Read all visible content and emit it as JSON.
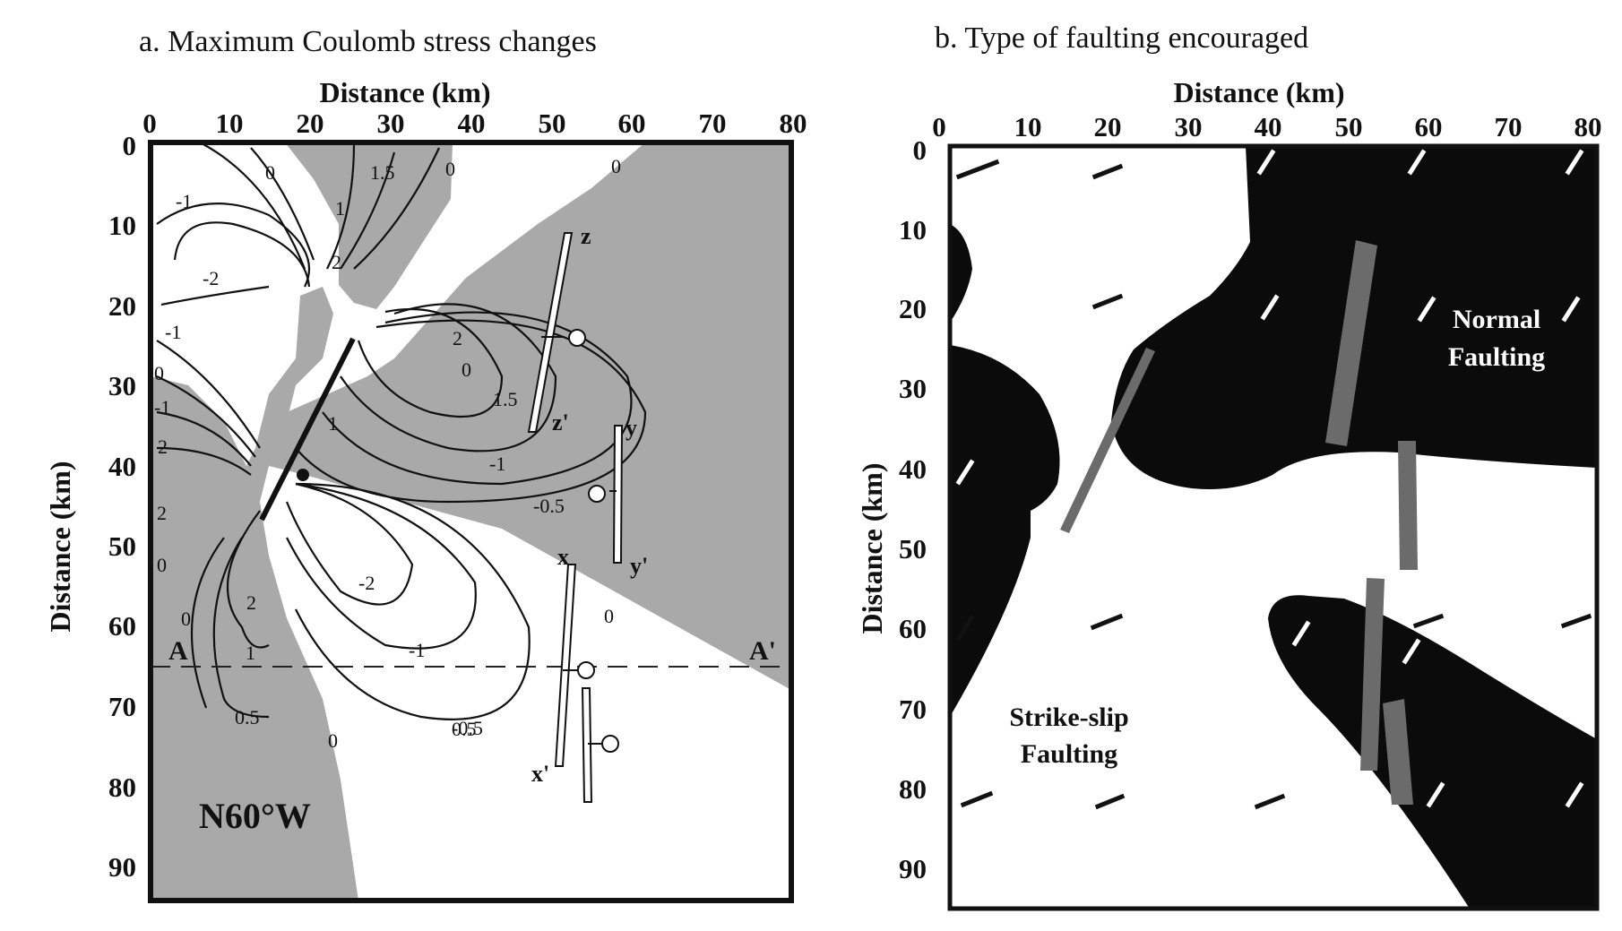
{
  "panel_a": {
    "title": "a. Maximum Coulomb stress changes",
    "x_axis_title": "Distance (km)",
    "y_axis_title": "Distance (km)",
    "x_ticks": [
      "0",
      "10",
      "20",
      "30",
      "40",
      "50",
      "60",
      "70",
      "80"
    ],
    "y_ticks": [
      "0",
      "10",
      "20",
      "30",
      "40",
      "50",
      "60",
      "70",
      "80",
      "90"
    ],
    "orientation_label": "N60°W",
    "profile_start": "A",
    "profile_end": "A'",
    "contour_labels": [
      "0",
      "0",
      "0",
      "1.5",
      "-1",
      "1",
      "2",
      "-2",
      "-1",
      "0",
      "-1",
      "2",
      "0",
      "2",
      "1.5",
      "-1",
      "2",
      "0",
      "-2",
      "2",
      "0",
      "-1",
      "1",
      "0.5",
      "-0.5",
      "0.5",
      "0",
      "-0.5",
      "0",
      "1"
    ],
    "fault_labels": [
      "z",
      "z'",
      "y",
      "y'",
      "x",
      "x'"
    ]
  },
  "panel_b": {
    "title": "b. Type of faulting encouraged",
    "x_axis_title": "Distance (km)",
    "y_axis_title": "Distance (km)",
    "x_ticks": [
      "0",
      "10",
      "20",
      "30",
      "40",
      "50",
      "60",
      "70",
      "80"
    ],
    "y_ticks": [
      "0",
      "10",
      "20",
      "30",
      "40",
      "50",
      "60",
      "70",
      "80",
      "90"
    ],
    "normal_label_line1": "Normal",
    "normal_label_line2": "Faulting",
    "strike_label_line1": "Strike-slip",
    "strike_label_line2": "Faulting"
  },
  "colors": {
    "gray_fill": "#a9a9a9",
    "black_fill": "#0b0b0b",
    "fault_fill": "#6b6b6b",
    "white": "#ffffff"
  }
}
